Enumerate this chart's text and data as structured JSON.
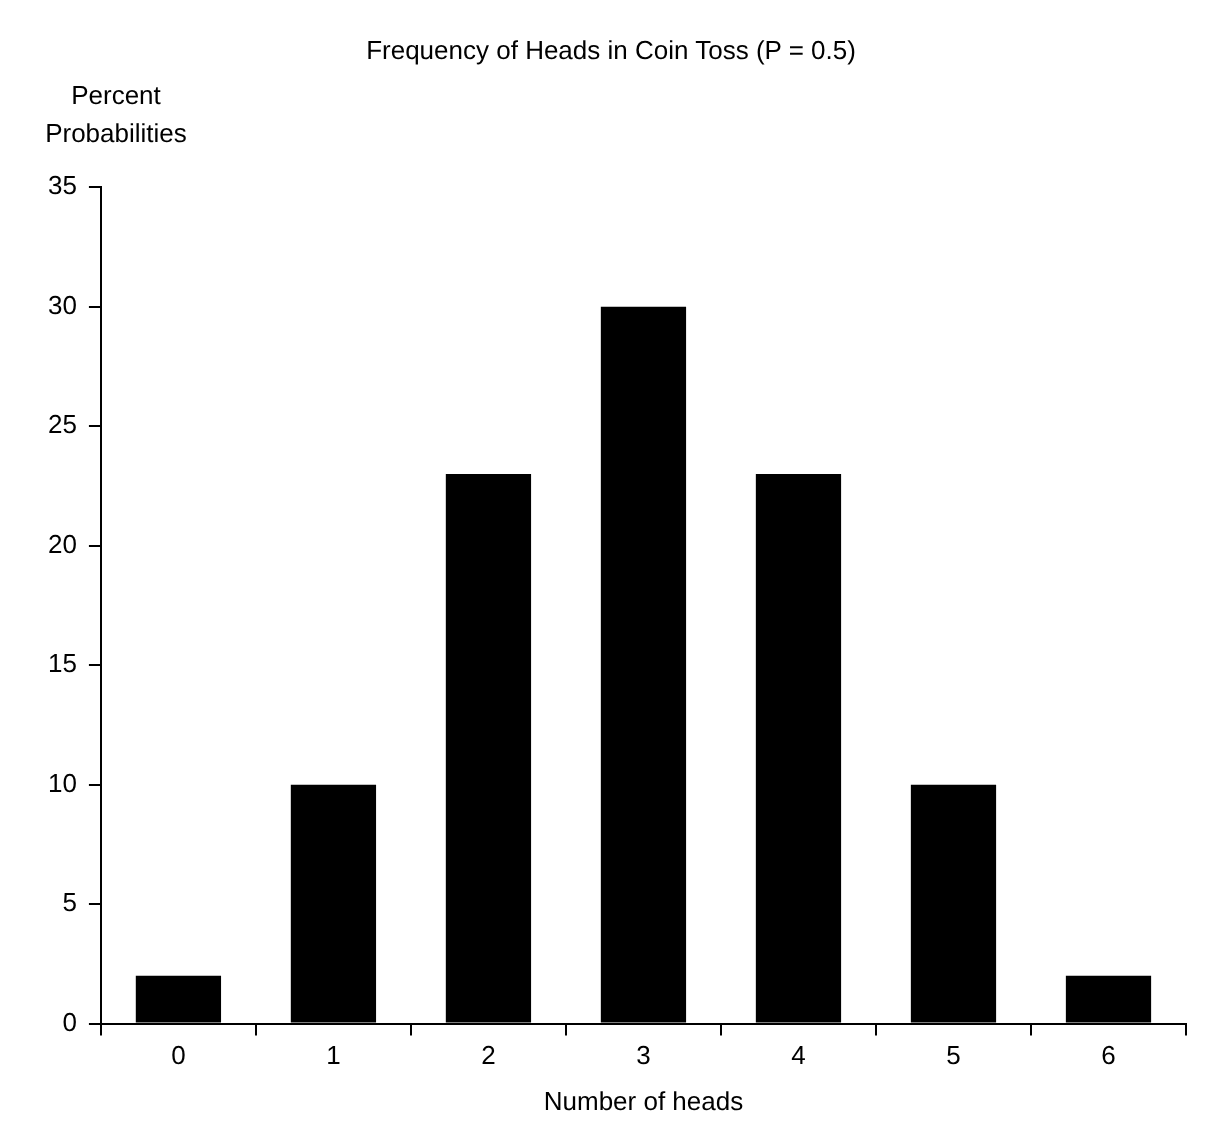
{
  "chart_data": {
    "type": "bar",
    "title": "Frequency of Heads in Coin Toss (P = 0.5)",
    "xlabel": "Number of heads",
    "ylabel": "Percent Probabilities",
    "categories": [
      "0",
      "1",
      "2",
      "3",
      "4",
      "5",
      "6"
    ],
    "values": [
      2,
      10,
      23,
      30,
      23,
      10,
      2
    ],
    "color": "#000000",
    "ylim": [
      0,
      35
    ],
    "yticks": [
      0,
      5,
      10,
      15,
      20,
      25,
      30,
      35
    ],
    "grid": false,
    "legend": false
  }
}
